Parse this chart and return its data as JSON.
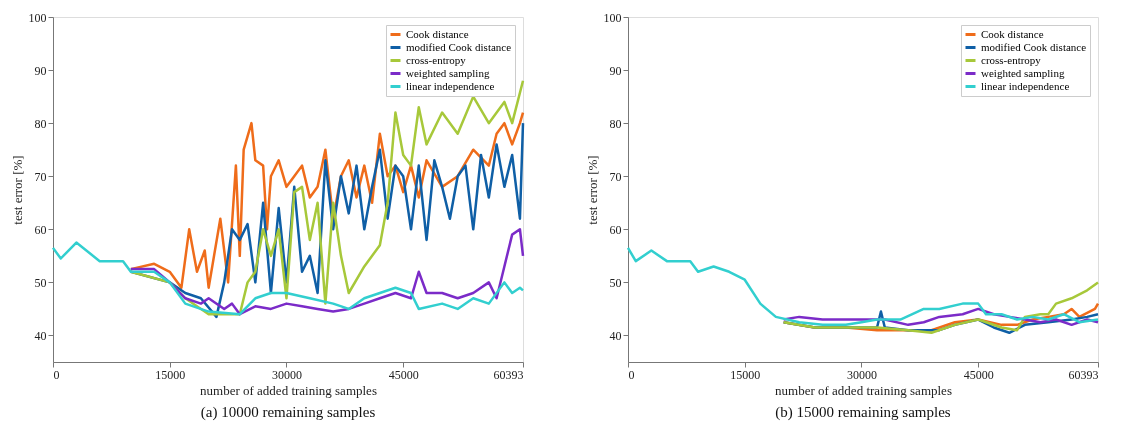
{
  "chart_data": [
    {
      "type": "line",
      "title": "(a) 10000 remaining samples",
      "xlabel": "number of added training samples",
      "ylabel": "test error [%]",
      "xlim": [
        0,
        60393
      ],
      "ylim": [
        35,
        100
      ],
      "xticks": [
        0,
        15000,
        30000,
        45000,
        60393
      ],
      "yticks": [
        40,
        50,
        60,
        70,
        80,
        90,
        100
      ],
      "grid": false,
      "legend": "top right",
      "marker": "none",
      "line_style": "solid",
      "series": [
        {
          "name": "Cook distance",
          "color": "#ef6c1a",
          "x": [
            10000,
            13000,
            15000,
            16500,
            17500,
            18500,
            19500,
            20000,
            21500,
            22500,
            23500,
            24000,
            24500,
            25500,
            26000,
            27000,
            27500,
            28000,
            29000,
            30000,
            31000,
            32000,
            33000,
            34000,
            35000,
            36000,
            37000,
            38000,
            39000,
            40000,
            41000,
            42000,
            43000,
            44000,
            45000,
            46000,
            47000,
            48000,
            50000,
            52000,
            54000,
            56000,
            57000,
            58000,
            59000,
            60000,
            60393
          ],
          "values": [
            52.5,
            53.5,
            52,
            49,
            60,
            52,
            56,
            49,
            62,
            50,
            72,
            55,
            75,
            80,
            73,
            72,
            60,
            70,
            73,
            68,
            70,
            72,
            66,
            68,
            75,
            62,
            70,
            73,
            66,
            72,
            65,
            78,
            70,
            72,
            67,
            72,
            66,
            73,
            68,
            70,
            75,
            72,
            78,
            80,
            76,
            80,
            82
          ]
        },
        {
          "name": "modified Cook distance",
          "color": "#0f5fa6",
          "x": [
            10000,
            15000,
            17000,
            19000,
            21000,
            22000,
            23000,
            24000,
            25000,
            26000,
            27000,
            28000,
            29000,
            30000,
            31000,
            32000,
            33000,
            34000,
            35000,
            36000,
            37000,
            38000,
            39000,
            40000,
            41000,
            42000,
            43000,
            44000,
            45000,
            46000,
            47000,
            48000,
            49000,
            50000,
            51000,
            52000,
            53000,
            54000,
            55000,
            56000,
            57000,
            58000,
            59000,
            60000,
            60393
          ],
          "values": [
            52,
            50,
            48,
            47,
            43.5,
            50,
            60,
            58,
            61,
            50,
            65,
            48,
            64,
            50,
            68,
            52,
            55,
            48,
            73,
            60,
            70,
            63,
            72,
            60,
            68,
            75,
            62,
            72,
            70,
            60,
            72,
            58,
            73,
            68,
            62,
            70,
            72,
            60,
            74,
            66,
            76,
            68,
            74,
            62,
            80
          ]
        },
        {
          "name": "cross-entropy",
          "color": "#a7c83a",
          "x": [
            10000,
            15000,
            17000,
            20000,
            24000,
            25000,
            26000,
            27000,
            28000,
            29000,
            30000,
            31000,
            32000,
            33000,
            34000,
            35000,
            36000,
            37000,
            38000,
            40000,
            42000,
            43000,
            44000,
            45000,
            46000,
            47000,
            48000,
            50000,
            52000,
            54000,
            56000,
            58000,
            59000,
            60393
          ],
          "values": [
            52,
            50,
            47,
            44,
            44,
            50,
            52,
            60,
            55,
            60,
            47,
            67,
            68,
            58,
            65,
            46,
            65,
            55,
            48,
            53,
            57,
            65,
            82,
            74,
            72,
            83,
            76,
            82,
            78,
            85,
            80,
            84,
            80,
            88
          ]
        },
        {
          "name": "weighted sampling",
          "color": "#7b2bc8",
          "x": [
            10000,
            13000,
            15000,
            17000,
            19000,
            20000,
            22000,
            23000,
            24000,
            26000,
            28000,
            30000,
            32000,
            34000,
            36000,
            38000,
            40000,
            42000,
            44000,
            46000,
            47000,
            48000,
            50000,
            52000,
            54000,
            56000,
            57000,
            58000,
            59000,
            60000,
            60393
          ],
          "values": [
            52.5,
            52.5,
            50,
            47,
            46,
            47,
            45,
            46,
            44,
            45.5,
            45,
            46,
            45.5,
            45,
            44.5,
            45,
            46,
            47,
            48,
            47,
            52,
            48,
            48,
            47,
            48,
            50,
            47,
            53,
            59,
            60,
            55
          ]
        },
        {
          "name": "linear independence",
          "color": "#32cfcf",
          "x": [
            0,
            1000,
            3000,
            6000,
            9000,
            10000,
            13000,
            15000,
            17000,
            20000,
            24000,
            26000,
            28000,
            30000,
            33000,
            36000,
            38000,
            40000,
            42000,
            44000,
            46000,
            47000,
            50000,
            52000,
            54000,
            56000,
            58000,
            59000,
            60000,
            60393
          ],
          "values": [
            56.5,
            54.5,
            57.5,
            54,
            54,
            52,
            52,
            50,
            46,
            44.5,
            44,
            47,
            48,
            48,
            47,
            46,
            45,
            47,
            48,
            49,
            48,
            45,
            46,
            45,
            47,
            46,
            50,
            48,
            49,
            48.5
          ]
        }
      ]
    },
    {
      "type": "line",
      "title": "(b) 15000 remaining samples",
      "xlabel": "number of added training samples",
      "ylabel": "test error [%]",
      "xlim": [
        0,
        60393
      ],
      "ylim": [
        35,
        100
      ],
      "xticks": [
        0,
        15000,
        30000,
        45000,
        60393
      ],
      "yticks": [
        40,
        50,
        60,
        70,
        80,
        90,
        100
      ],
      "grid": false,
      "legend": "top right",
      "marker": "none",
      "line_style": "solid",
      "series": [
        {
          "name": "Cook distance",
          "color": "#ef6c1a",
          "x": [
            20000,
            24000,
            28000,
            32000,
            36000,
            39000,
            42000,
            45000,
            48000,
            50000,
            52000,
            54000,
            56000,
            57000,
            58000,
            60000,
            60393
          ],
          "values": [
            42.5,
            41.5,
            41.5,
            41,
            41,
            41,
            42.5,
            43,
            42,
            42,
            43,
            43.5,
            44,
            45,
            43.5,
            45,
            46
          ]
        },
        {
          "name": "modified Cook distance",
          "color": "#0f5fa6",
          "x": [
            20000,
            24000,
            28000,
            32000,
            32500,
            33000,
            36000,
            40000,
            42000,
            45000,
            47000,
            49000,
            51000,
            54000,
            57000,
            59000,
            60393
          ],
          "values": [
            42.5,
            41.5,
            41.5,
            41.5,
            44.5,
            41.5,
            41,
            41,
            42,
            43,
            41.5,
            40.5,
            42,
            42.5,
            43,
            43.5,
            44
          ]
        },
        {
          "name": "cross-entropy",
          "color": "#a7c83a",
          "x": [
            20000,
            24000,
            28000,
            32000,
            36000,
            39000,
            42000,
            45000,
            48000,
            50000,
            51000,
            53000,
            54000,
            55000,
            57000,
            59000,
            60393
          ],
          "values": [
            42.5,
            41.5,
            41.5,
            41.5,
            41,
            40.5,
            42,
            43,
            41.5,
            41,
            43.5,
            44,
            44,
            46,
            47,
            48.5,
            50
          ]
        },
        {
          "name": "weighted sampling",
          "color": "#7b2bc8",
          "x": [
            20000,
            22000,
            25000,
            28000,
            30000,
            33000,
            36000,
            38000,
            40000,
            43000,
            45000,
            47000,
            49000,
            51000,
            53000,
            55000,
            57000,
            59000,
            60393
          ],
          "values": [
            43,
            43.5,
            43,
            43,
            43,
            43,
            42,
            42.5,
            43.5,
            44,
            45,
            44,
            43.5,
            43,
            42.5,
            43,
            42,
            43,
            42.5
          ]
        },
        {
          "name": "linear independence",
          "color": "#32cfcf",
          "x": [
            0,
            1000,
            3000,
            5000,
            8000,
            9000,
            11000,
            13000,
            15000,
            17000,
            19000,
            22000,
            25000,
            28000,
            30000,
            32000,
            35000,
            38000,
            40000,
            43000,
            45000,
            46000,
            48000,
            50000,
            52000,
            54000,
            56000,
            58000,
            60393
          ],
          "values": [
            56.5,
            54,
            56,
            54,
            54,
            52,
            53,
            52,
            50.5,
            46,
            43.5,
            42.5,
            42,
            42,
            42.5,
            43,
            43,
            45,
            45,
            46,
            46,
            44,
            44,
            43,
            43.5,
            43,
            44,
            42.5,
            43
          ]
        }
      ]
    }
  ]
}
